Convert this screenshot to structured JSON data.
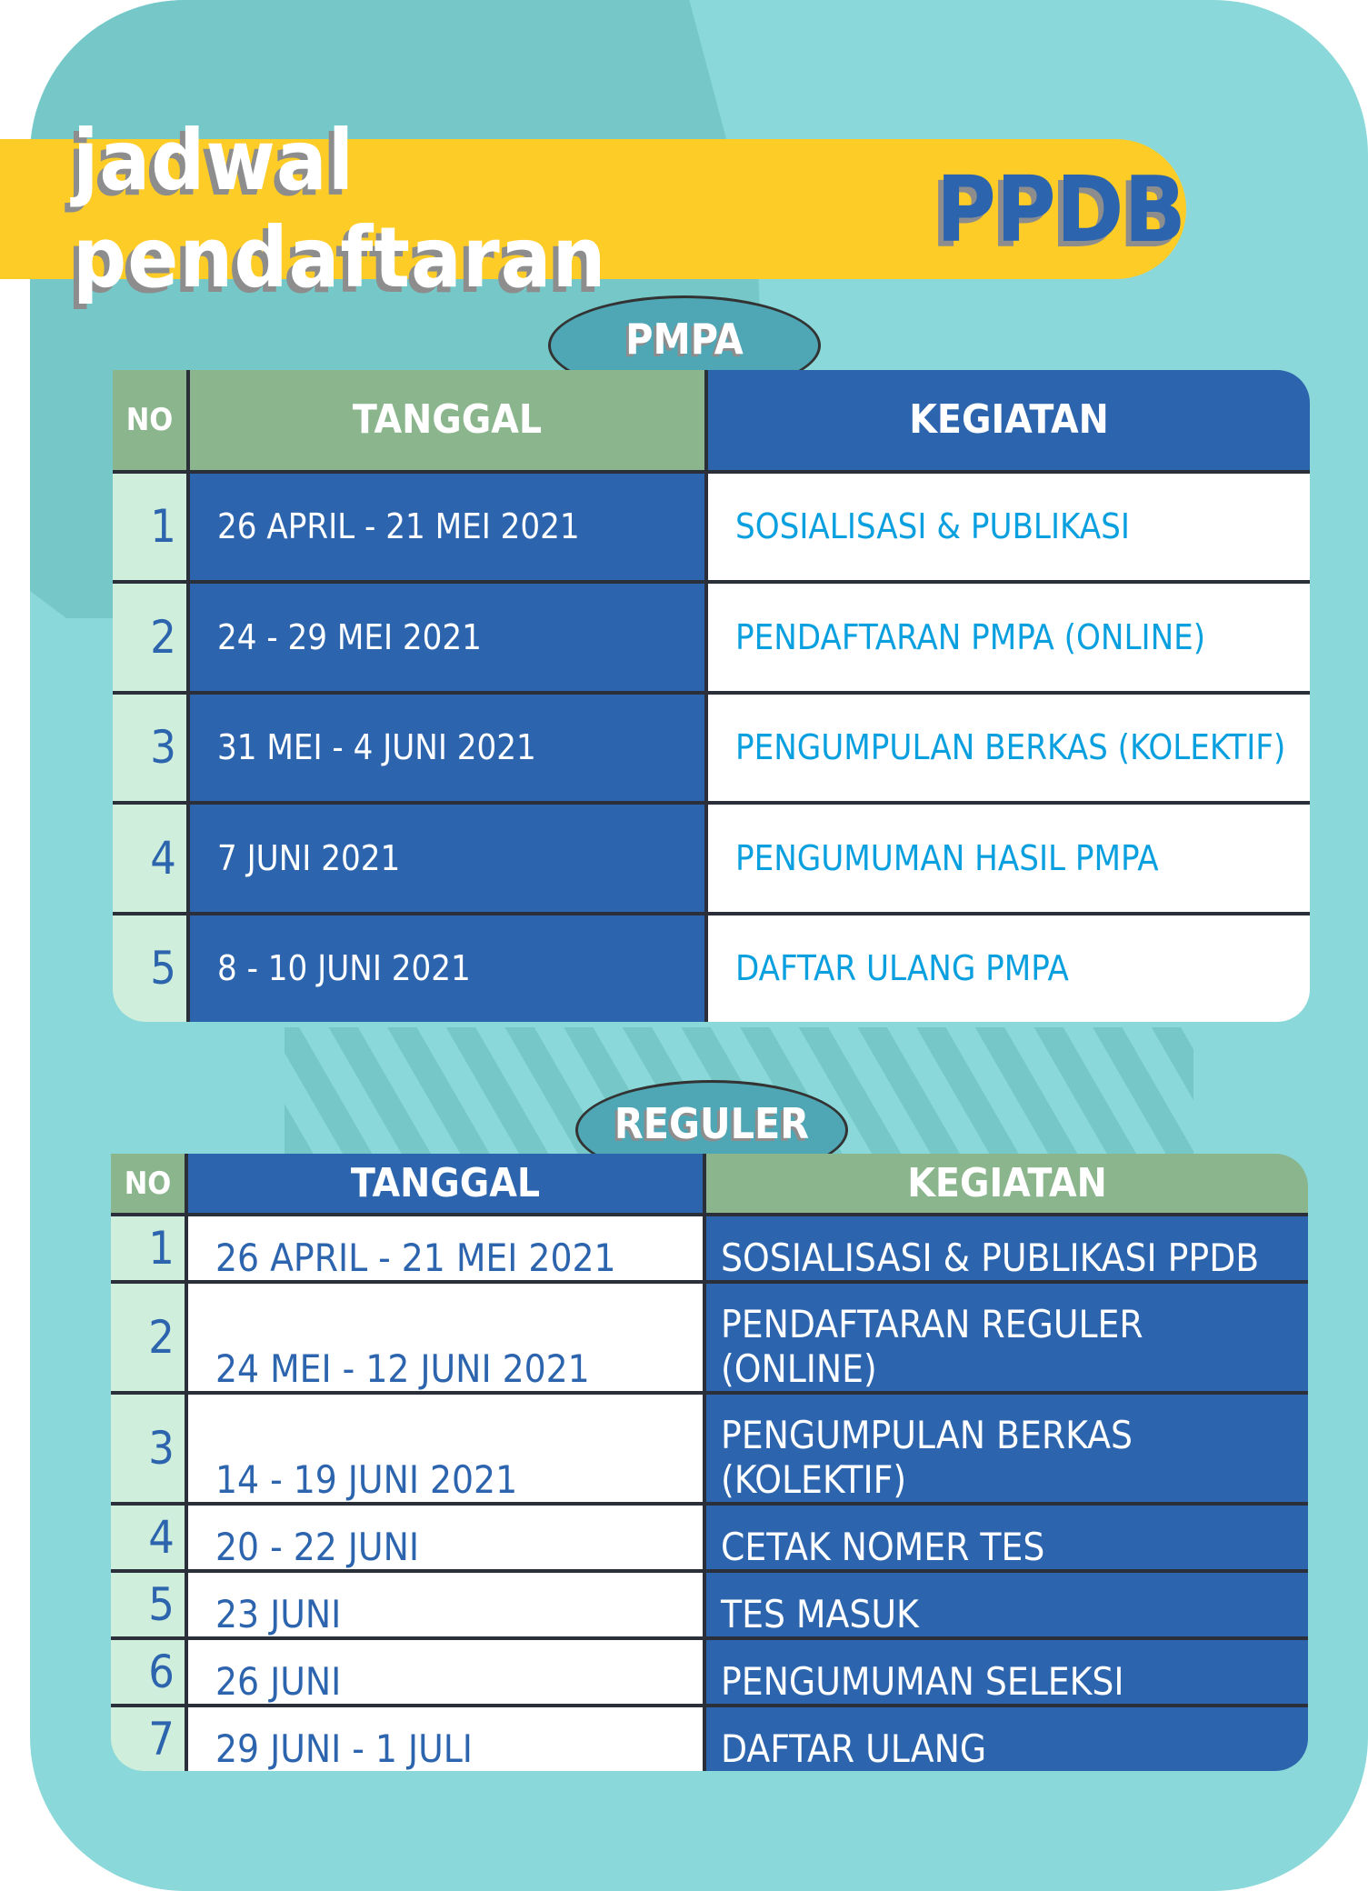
{
  "title": {
    "main": "jadwal pendaftaran",
    "accent": "PPDB"
  },
  "colors": {
    "background": "#8AD8D9",
    "banner": "#FECC27",
    "blue": "#2C64AE",
    "green": "#8BB68D",
    "teal_tab": "#4FA6B5"
  },
  "pmpa": {
    "label": "PMPA",
    "headers": {
      "no": "NO",
      "date": "TANGGAL",
      "activity": "KEGIATAN"
    },
    "rows": [
      {
        "no": "1",
        "date": "26 APRIL - 21 MEI 2021",
        "activity": "SOSIALISASI & PUBLIKASI"
      },
      {
        "no": "2",
        "date": "24 - 29 MEI 2021",
        "activity": "PENDAFTARAN PMPA (ONLINE)"
      },
      {
        "no": "3",
        "date": "31 MEI - 4 JUNI 2021",
        "activity": "PENGUMPULAN BERKAS (KOLEKTIF)"
      },
      {
        "no": "4",
        "date": "7 JUNI 2021",
        "activity": "PENGUMUMAN HASIL PMPA"
      },
      {
        "no": "5",
        "date": "8 - 10 JUNI 2021",
        "activity": "DAFTAR ULANG PMPA"
      }
    ]
  },
  "reguler": {
    "label": "REGULER",
    "headers": {
      "no": "NO",
      "date": "TANGGAL",
      "activity": "KEGIATAN"
    },
    "rows": [
      {
        "no": "1",
        "date": "26 APRIL - 21 MEI 2021",
        "activity": "SOSIALISASI & PUBLIKASI PPDB"
      },
      {
        "no": "2",
        "date": "24 MEI - 12 JUNI 2021",
        "activity": "PENDAFTARAN REGULER (ONLINE)"
      },
      {
        "no": "3",
        "date": "14 - 19 JUNI 2021",
        "activity": "PENGUMPULAN BERKAS (KOLEKTIF)"
      },
      {
        "no": "4",
        "date": "20 - 22 JUNI",
        "activity": "CETAK NOMER TES"
      },
      {
        "no": "5",
        "date": "23 JUNI",
        "activity": "TES MASUK"
      },
      {
        "no": "6",
        "date": "26 JUNI",
        "activity": "PENGUMUMAN SELEKSI"
      },
      {
        "no": "7",
        "date": "29 JUNI - 1 JULI",
        "activity": "DAFTAR ULANG"
      }
    ]
  }
}
